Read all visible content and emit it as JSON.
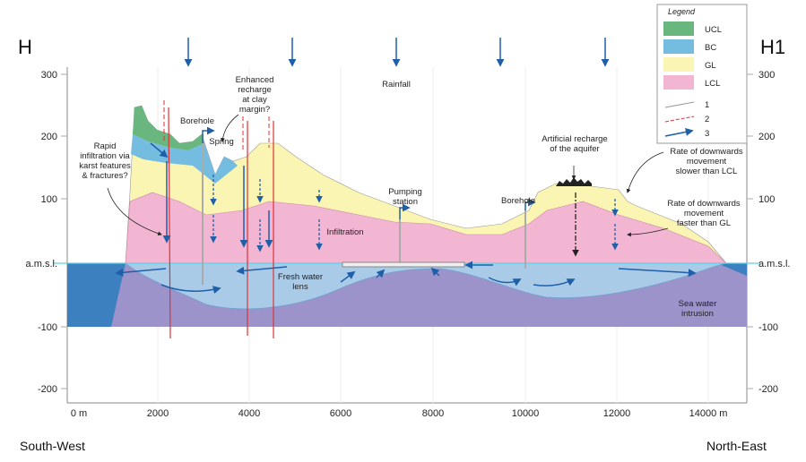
{
  "header": {
    "left": "H",
    "right": "H1"
  },
  "axis": {
    "left_ticks": [
      "300",
      "200",
      "100",
      "a.m.s.l.",
      "-100",
      "-200"
    ],
    "right_ticks": [
      "300",
      "200",
      "100",
      "a.m.s.l.",
      "-100",
      "-200"
    ],
    "bottom_ticks": [
      "0 m",
      "2000",
      "4000",
      "6000",
      "8000",
      "10000",
      "12000",
      "14000 m"
    ]
  },
  "footer": {
    "left": "South-West",
    "right": "North-East"
  },
  "legend": {
    "title": "Legend",
    "items": [
      "UCL",
      "BC",
      "GL",
      "LCL",
      "1",
      "2",
      "3"
    ]
  },
  "annotations": {
    "rapid_infiltration": [
      "Rapid",
      "infiltration via",
      "karst features",
      "& fractures?"
    ],
    "borehole_left": "Borehole",
    "spring": "Spring",
    "enhanced_recharge": [
      "Enhanced",
      "recharge",
      "at clay",
      "margin?"
    ],
    "rainfall": "Rainfall",
    "pumping_station": [
      "Pumping",
      "station"
    ],
    "infiltration": "Infiltration",
    "fresh_water_lens": [
      "Fresh water",
      "lens"
    ],
    "borehole_right": "Borehole",
    "artificial_recharge": [
      "Artificial recharge",
      "of the aquifer"
    ],
    "slower": [
      "Rate of downwards",
      "movement",
      "slower than LCL"
    ],
    "faster": [
      "Rate of downwards",
      "movement",
      "faster than GL"
    ],
    "sea_water": [
      "Sea water",
      "intrusion"
    ]
  }
}
